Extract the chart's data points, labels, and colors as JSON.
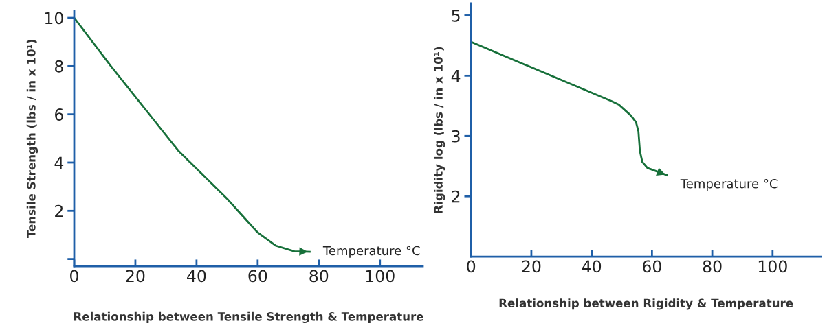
{
  "chart_data": [
    {
      "type": "line",
      "xlabel": "Relationship between Tensile Strength & Temperature",
      "ylabel": "Tensile Strength (lbs / in x 10¹)",
      "annotations": [
        "Temperature °C"
      ],
      "x": [
        0,
        12,
        34,
        50,
        60,
        66,
        72,
        77
      ],
      "series": [
        {
          "color": "#17703a",
          "values": [
            10,
            8,
            4.5,
            2.5,
            1.1,
            0.55,
            0.32,
            0.3
          ]
        }
      ],
      "xlim": [
        0,
        114
      ],
      "ylim": [
        -0.3,
        10.3
      ],
      "xticks": [
        0,
        20,
        40,
        60,
        80,
        100
      ],
      "yticks": [
        {
          "value": 0,
          "label": null
        },
        2,
        4,
        6,
        8,
        10
      ],
      "grid": false,
      "legend": false
    },
    {
      "type": "line",
      "xlabel": "Relationship between Rigidity & Temperature",
      "ylabel": "Rigidity log (lbs / in x 10¹)",
      "annotations": [
        "Temperature °C"
      ],
      "x": [
        0,
        46.5,
        49,
        53,
        54.7,
        55.5,
        56,
        56.8,
        58.5,
        65
      ],
      "series": [
        {
          "color": "#17703a",
          "values": [
            4.56,
            3.58,
            3.52,
            3.34,
            3.23,
            3.08,
            2.75,
            2.57,
            2.47,
            2.35
          ]
        }
      ],
      "xlim": [
        0,
        116
      ],
      "ylim": [
        1,
        5.2
      ],
      "xticks": [
        0,
        20,
        40,
        60,
        80,
        100
      ],
      "yticks": [
        2,
        3,
        4,
        5
      ],
      "grid": false,
      "legend": false
    }
  ]
}
